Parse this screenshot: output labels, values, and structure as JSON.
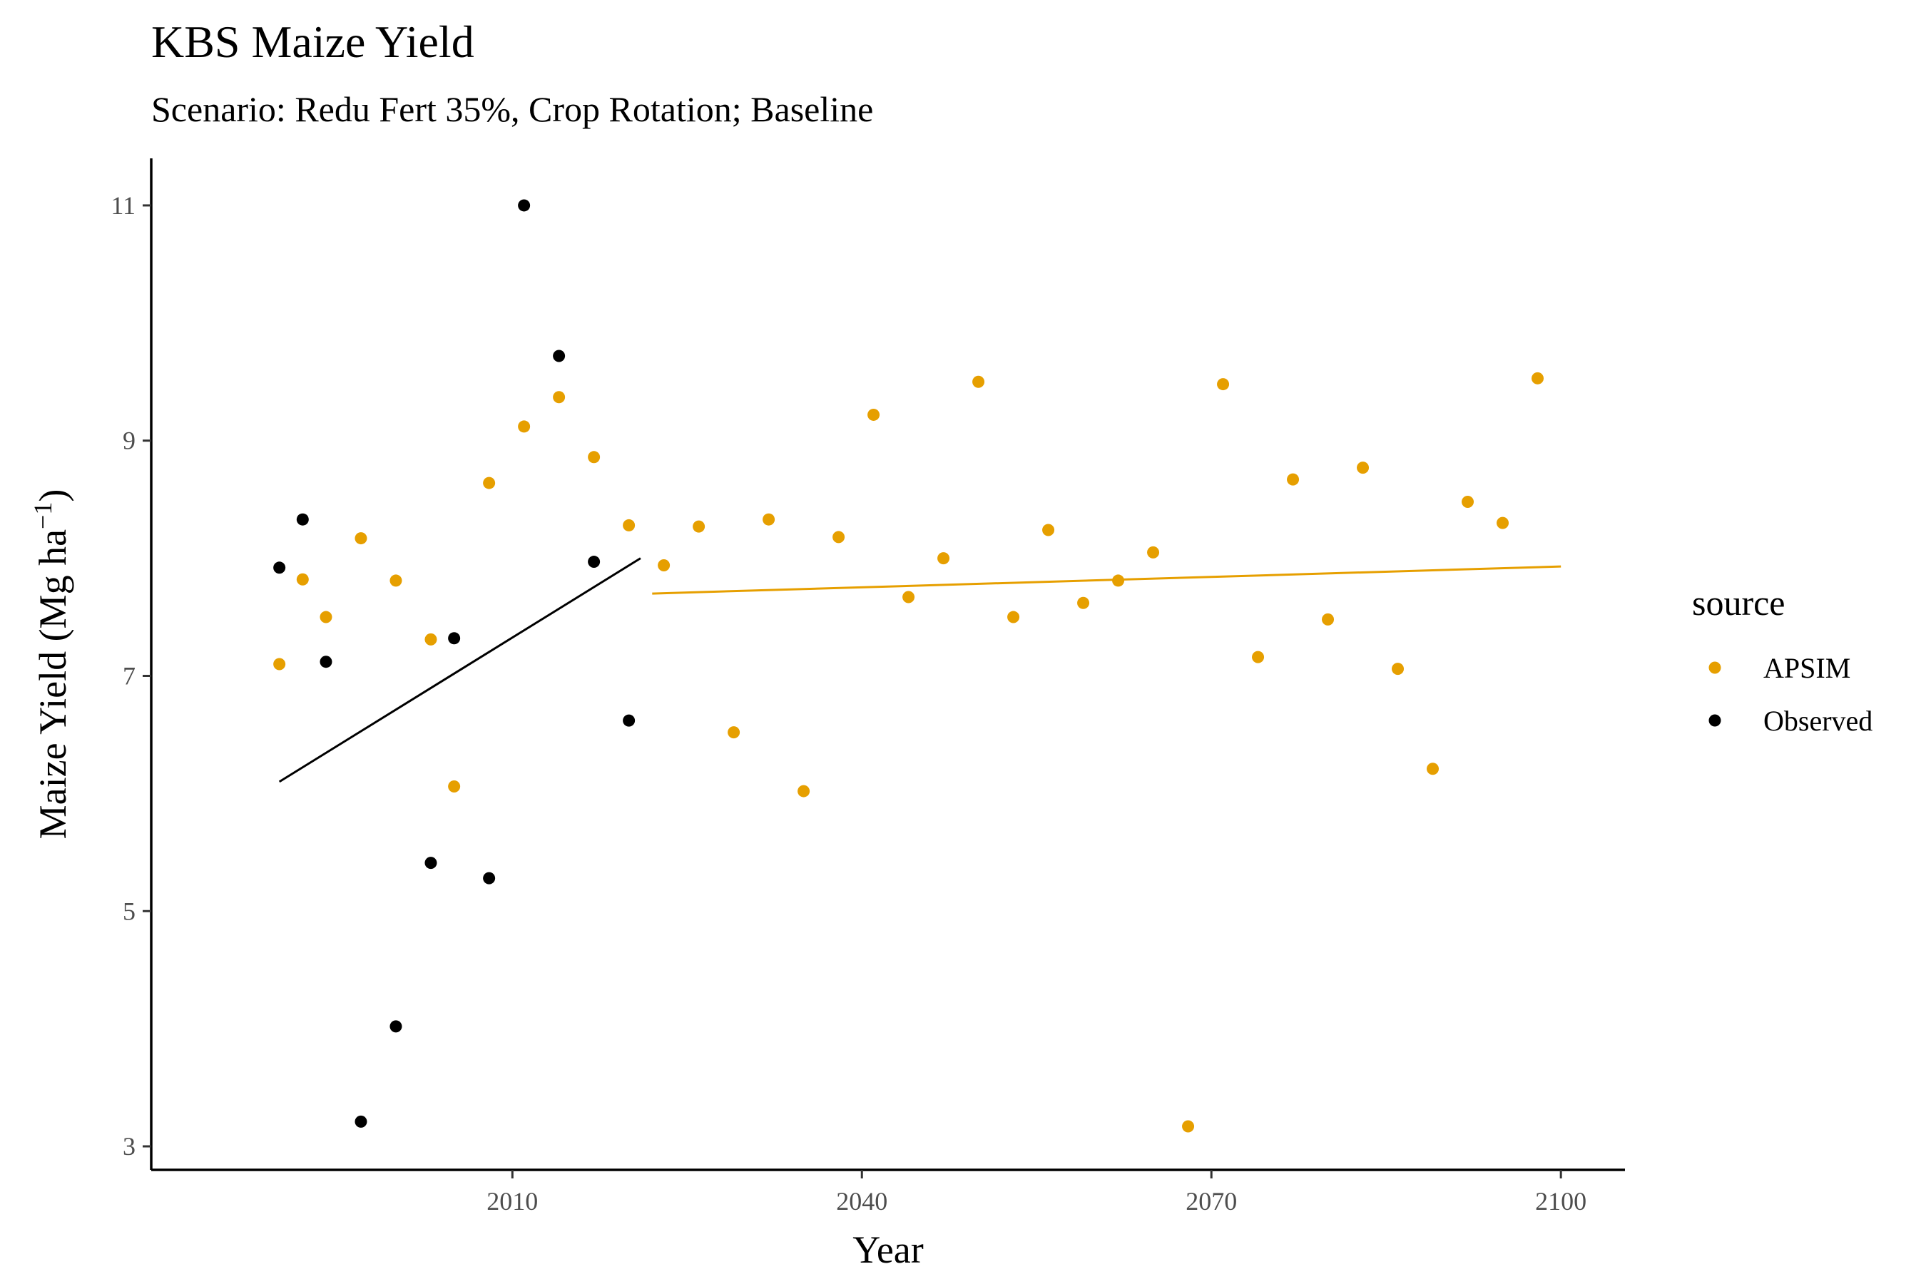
{
  "chart_data": {
    "type": "scatter",
    "title": "KBS Maize Yield",
    "subtitle": "Scenario: Redu Fert 35%, Crop Rotation; Baseline",
    "xlabel": "Year",
    "ylabel": "Maize Yield (Mg ha",
    "ylabel_sup": "−1",
    "ylabel_close": ")",
    "xlim": [
      1979,
      2105.5
    ],
    "ylim": [
      2.8,
      11.4
    ],
    "x_ticks": [
      2010,
      2040,
      2070,
      2100
    ],
    "y_ticks": [
      3,
      5,
      7,
      9,
      11
    ],
    "grid": false,
    "legend": {
      "title": "source",
      "position": "right"
    },
    "series": [
      {
        "name": "APSIM",
        "color": "#E69F00",
        "points": [
          [
            1990,
            7.1
          ],
          [
            1992,
            7.82
          ],
          [
            1994,
            7.5
          ],
          [
            1997,
            8.17
          ],
          [
            2000,
            7.81
          ],
          [
            2003,
            7.31
          ],
          [
            2005,
            6.06
          ],
          [
            2008,
            8.64
          ],
          [
            2011,
            9.12
          ],
          [
            2014,
            9.37
          ],
          [
            2017,
            8.86
          ],
          [
            2020,
            8.28
          ],
          [
            2023,
            7.94
          ],
          [
            2026,
            8.27
          ],
          [
            2029,
            6.52
          ],
          [
            2032,
            8.33
          ],
          [
            2035,
            6.02
          ],
          [
            2038,
            8.18
          ],
          [
            2041,
            9.22
          ],
          [
            2044,
            7.67
          ],
          [
            2047,
            8.0
          ],
          [
            2050,
            9.5
          ],
          [
            2053,
            7.5
          ],
          [
            2056,
            8.24
          ],
          [
            2059,
            7.62
          ],
          [
            2062,
            7.81
          ],
          [
            2065,
            8.05
          ],
          [
            2068,
            3.17
          ],
          [
            2071,
            9.48
          ],
          [
            2074,
            7.16
          ],
          [
            2077,
            8.67
          ],
          [
            2080,
            7.48
          ],
          [
            2083,
            8.77
          ],
          [
            2086,
            7.06
          ],
          [
            2089,
            6.21
          ],
          [
            2092,
            8.48
          ],
          [
            2095,
            8.3
          ],
          [
            2098,
            9.53
          ]
        ],
        "trend": [
          [
            2022,
            7.7
          ],
          [
            2100,
            7.93
          ]
        ]
      },
      {
        "name": "Observed",
        "color": "#000000",
        "points": [
          [
            1990,
            7.92
          ],
          [
            1992,
            8.33
          ],
          [
            1994,
            7.12
          ],
          [
            1997,
            3.21
          ],
          [
            2000,
            4.02
          ],
          [
            2003,
            5.41
          ],
          [
            2005,
            7.32
          ],
          [
            2008,
            5.28
          ],
          [
            2011,
            11.0
          ],
          [
            2014,
            9.72
          ],
          [
            2017,
            7.97
          ],
          [
            2020,
            6.62
          ]
        ],
        "trend": [
          [
            1990,
            6.1
          ],
          [
            2021,
            8.0
          ]
        ]
      }
    ]
  }
}
